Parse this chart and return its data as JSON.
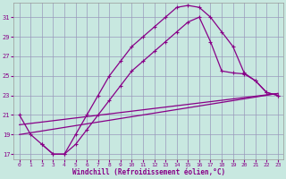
{
  "xlabel": "Windchill (Refroidissement éolien,°C)",
  "background_color": "#c8e8e0",
  "line_color": "#880088",
  "grid_color": "#9999bb",
  "xlim": [
    -0.5,
    23.5
  ],
  "ylim": [
    16.5,
    32.5
  ],
  "xticks": [
    0,
    1,
    2,
    3,
    4,
    5,
    6,
    7,
    8,
    9,
    10,
    11,
    12,
    13,
    14,
    15,
    16,
    17,
    18,
    19,
    20,
    21,
    22,
    23
  ],
  "yticks": [
    17,
    19,
    21,
    23,
    25,
    27,
    29,
    31
  ],
  "curve1_x": [
    0,
    1,
    2,
    3,
    4,
    5,
    6,
    7,
    8,
    9,
    10,
    11,
    12,
    13,
    14,
    15,
    16,
    17,
    18,
    19,
    20,
    21,
    22,
    23
  ],
  "curve1_y": [
    21,
    19,
    18,
    17,
    17,
    19,
    21,
    23,
    25,
    26.5,
    28,
    29,
    30,
    31,
    32,
    32.2,
    32,
    31,
    29.5,
    28,
    25.3,
    24.5,
    23.3,
    23
  ],
  "curve2_x": [
    2,
    3,
    4,
    5,
    6,
    7,
    8,
    9,
    10,
    11,
    12,
    13,
    14,
    15,
    16,
    17,
    18,
    19,
    20,
    21,
    22,
    23
  ],
  "curve2_y": [
    18,
    17,
    17,
    18,
    19.5,
    21,
    22.5,
    24,
    25.5,
    26.5,
    27.5,
    28.5,
    29.5,
    30.5,
    31,
    28.5,
    25.5,
    25.3,
    25.2,
    24.5,
    23.3,
    23
  ],
  "line3_x": [
    0,
    23
  ],
  "line3_y": [
    19,
    23.2
  ],
  "line4_x": [
    0,
    23
  ],
  "line4_y": [
    20,
    23.2
  ]
}
